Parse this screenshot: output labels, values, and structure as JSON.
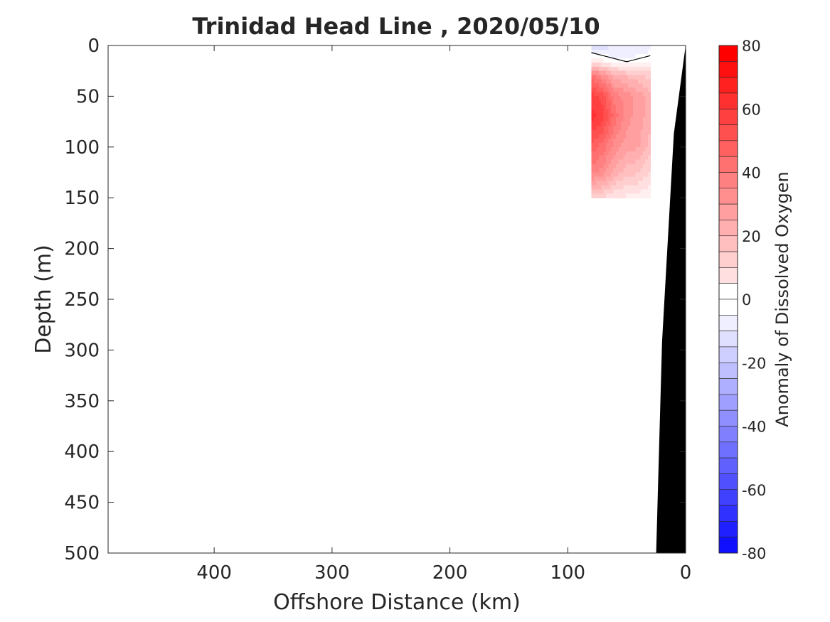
{
  "chart_data": {
    "type": "heatmap",
    "title": "Trinidad Head Line , 2020/05/10",
    "xlabel": "Offshore Distance (km)",
    "ylabel": "Depth (m)",
    "colorbar_label": "Anomaly of Dissolved Oxygen",
    "xlim": [
      490,
      0
    ],
    "ylim": [
      0,
      500
    ],
    "x_reversed": true,
    "y_reversed": true,
    "xticks": [
      400,
      300,
      200,
      100,
      0
    ],
    "yticks": [
      0,
      50,
      100,
      150,
      200,
      250,
      300,
      350,
      400,
      450,
      500
    ],
    "colorbar": {
      "range": [
        -80,
        80
      ],
      "step": 5,
      "ticks": [
        80,
        60,
        40,
        20,
        0,
        -20,
        -40,
        -60,
        -80
      ],
      "positive_color": "#ff0000",
      "negative_color": "#0000ff",
      "zero_color": "#ffffff"
    },
    "stations_km": [
      80,
      70,
      60,
      50,
      40,
      30
    ],
    "depths_m": [
      5,
      15,
      30,
      50,
      70,
      100,
      125,
      150
    ],
    "anomaly": [
      [
        -8,
        -8,
        -7,
        -6,
        -5,
        -3
      ],
      [
        8,
        3,
        0,
        -1,
        0,
        3
      ],
      [
        45,
        35,
        25,
        22,
        20,
        15
      ],
      [
        60,
        55,
        40,
        35,
        30,
        25
      ],
      [
        65,
        60,
        45,
        35,
        30,
        25
      ],
      [
        50,
        45,
        35,
        30,
        28,
        20
      ],
      [
        40,
        35,
        25,
        20,
        18,
        12
      ],
      [
        15,
        12,
        8,
        6,
        5,
        3
      ]
    ],
    "zero_contour": [
      [
        80,
        7
      ],
      [
        70,
        10
      ],
      [
        50,
        16
      ],
      [
        30,
        10
      ]
    ],
    "bathymetry": [
      [
        0,
        0
      ],
      [
        10,
        87
      ],
      [
        20,
        292
      ],
      [
        25,
        500
      ]
    ],
    "bathymetry_color": "#000000"
  }
}
